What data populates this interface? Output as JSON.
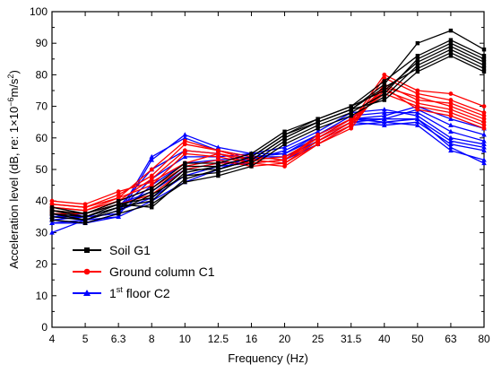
{
  "chart_data": {
    "type": "line",
    "xlabel": "Frequency (Hz)",
    "ylabel": {
      "main": "Acceleration level (dB, re: 1×10",
      "exp1": "−6",
      "mid": "m/s",
      "exp2": "2",
      "end": ")"
    },
    "categories": [
      "4",
      "5",
      "6.3",
      "8",
      "10",
      "12.5",
      "16",
      "20",
      "25",
      "31.5",
      "40",
      "50",
      "63",
      "80"
    ],
    "ylim": [
      0,
      100
    ],
    "yticks": [
      0,
      10,
      20,
      30,
      40,
      50,
      60,
      70,
      80,
      90,
      100
    ],
    "grid": false,
    "legend_position": "bottom-left",
    "legend": [
      {
        "group": "soil",
        "text": "Soil G1",
        "sup": "",
        "tail": ""
      },
      {
        "group": "ground",
        "text": "Ground column C1",
        "sup": "",
        "tail": ""
      },
      {
        "group": "floor",
        "text": "1",
        "sup": "st",
        "tail": " floor C2"
      }
    ],
    "colors": {
      "soil": "#000000",
      "ground": "#ff0000",
      "floor": "#0000ff"
    },
    "markers": {
      "soil": "square",
      "ground": "circle",
      "floor": "triangle"
    },
    "series": [
      {
        "group": "soil",
        "values": [
          37,
          36,
          39,
          38,
          47,
          50,
          53,
          60,
          65,
          69,
          77,
          90,
          94,
          88
        ]
      },
      {
        "group": "soil",
        "values": [
          36,
          35,
          38,
          40,
          49,
          51,
          54,
          61,
          66,
          70,
          78,
          86,
          91,
          86
        ]
      },
      {
        "group": "soil",
        "values": [
          35,
          34,
          37,
          42,
          48,
          49,
          52,
          59,
          64,
          68,
          74,
          85,
          90,
          85
        ]
      },
      {
        "group": "soil",
        "values": [
          38,
          36,
          40,
          44,
          52,
          52,
          55,
          62,
          66,
          70,
          75,
          84,
          89,
          84
        ]
      },
      {
        "group": "soil",
        "values": [
          34,
          33,
          36,
          39,
          46,
          48,
          51,
          58,
          63,
          67,
          73,
          83,
          88,
          83
        ]
      },
      {
        "group": "soil",
        "values": [
          37,
          35,
          39,
          41,
          50,
          50,
          53,
          60,
          65,
          69,
          76,
          82,
          87,
          82
        ]
      },
      {
        "group": "soil",
        "values": [
          36,
          34,
          38,
          43,
          51,
          51,
          54,
          61,
          65,
          69,
          72,
          81,
          86,
          81
        ]
      },
      {
        "group": "ground",
        "values": [
          40,
          39,
          43,
          46,
          52,
          55,
          52,
          53,
          60,
          65,
          80,
          75,
          74,
          70
        ]
      },
      {
        "group": "ground",
        "values": [
          39,
          38,
          42,
          48,
          58,
          56,
          53,
          52,
          59,
          64,
          79,
          74,
          72,
          68
        ]
      },
      {
        "group": "ground",
        "values": [
          38,
          37,
          41,
          45,
          55,
          54,
          52,
          51,
          58,
          63,
          77,
          72,
          71,
          67
        ]
      },
      {
        "group": "ground",
        "values": [
          37,
          36,
          40,
          44,
          51,
          53,
          51,
          52,
          58,
          64,
          76,
          73,
          70,
          66
        ]
      },
      {
        "group": "ground",
        "values": [
          36,
          36,
          39,
          42,
          50,
          52,
          52,
          53,
          59,
          65,
          75,
          71,
          69,
          65
        ]
      },
      {
        "group": "ground",
        "values": [
          38,
          37,
          40,
          47,
          56,
          55,
          53,
          54,
          60,
          66,
          74,
          70,
          68,
          64
        ]
      },
      {
        "group": "ground",
        "values": [
          39,
          38,
          41,
          50,
          59,
          56,
          54,
          53,
          61,
          66,
          76,
          69,
          67,
          63
        ]
      },
      {
        "group": "floor",
        "values": [
          30,
          34,
          35,
          53,
          61,
          57,
          55,
          55,
          60,
          66,
          67,
          70,
          66,
          63
        ]
      },
      {
        "group": "floor",
        "values": [
          33,
          33,
          36,
          54,
          60,
          56,
          54,
          54,
          59,
          65,
          66,
          69,
          64,
          61
        ]
      },
      {
        "group": "floor",
        "values": [
          35,
          35,
          38,
          50,
          56,
          55,
          53,
          56,
          61,
          67,
          68,
          68,
          62,
          59
        ]
      },
      {
        "group": "floor",
        "values": [
          36,
          34,
          37,
          47,
          54,
          54,
          55,
          57,
          62,
          68,
          69,
          67,
          60,
          58
        ]
      },
      {
        "group": "floor",
        "values": [
          34,
          35,
          36,
          45,
          52,
          53,
          54,
          55,
          60,
          66,
          65,
          66,
          59,
          57
        ]
      },
      {
        "group": "floor",
        "values": [
          35,
          36,
          39,
          43,
          50,
          52,
          53,
          54,
          59,
          65,
          64,
          65,
          58,
          56
        ]
      },
      {
        "group": "floor",
        "values": [
          33,
          34,
          37,
          41,
          48,
          51,
          52,
          53,
          58,
          64,
          65,
          64,
          56,
          53
        ]
      },
      {
        "group": "floor",
        "values": [
          34,
          33,
          35,
          40,
          46,
          50,
          54,
          55,
          61,
          66,
          66,
          66,
          57,
          52
        ]
      }
    ]
  }
}
